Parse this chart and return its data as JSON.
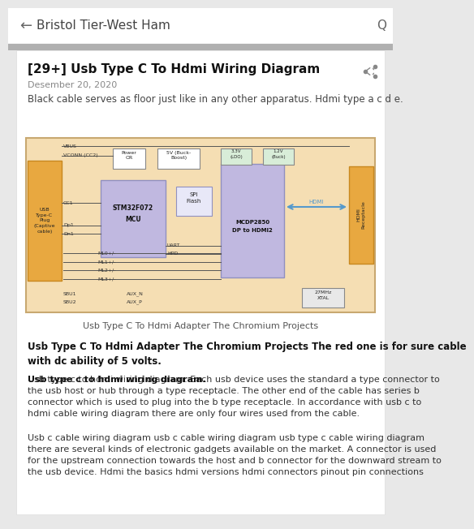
{
  "title": "Bristol Tier-West Ham",
  "article_title": "[29+] Usb Type C To Hdmi Wiring Diagram",
  "date": "Desember 20, 2020",
  "intro_text": "Black cable serves as floor just like in any other apparatus. Hdmi type a c d e.",
  "caption": "Usb Type C To Hdmi Adapter The Chromium Projects",
  "bold_heading_bold": "Usb Type C To Hdmi Adapter The Chromium Projects",
  "bold_heading_normal": " The red one is for sure cable\nwith dc ability of 5 volts.",
  "para1_bold": "Usb type c to hdmi wiring diagram.",
  "para1_rest": " Each usb device uses the standard a type connector to\nthe usb host or hub through a type receptacle. The other end of the cable has series b\nconnector which is used to plug into the b type receptacle. In accordance with usb c to\nhdmi cable wiring diagram there are only four wires used from the cable.",
  "paragraph2": "Usb c cable wiring diagram usb c cable wiring diagram usb type c cable wiring diagram\nthere are several kinds of electronic gadgets available on the market. A connector is used\nfor the upstream connection towards the host and b connector for the downward stream to\nthe usb device. Hdmi the basics hdmi versions hdmi connectors pinout pin connections",
  "bg_color": "#e8e8e8",
  "card_bg": "#ffffff",
  "header_bg": "#ffffff",
  "diagram_bg": "#f5deb3",
  "diagram_border": "#c8a870",
  "mcu_color": "#c0b8e0",
  "hdmi_chip_color": "#c0b8e0",
  "usb_plug_color": "#e8a840",
  "hdmi_rec_color": "#e8a840",
  "wire_color": "#555555",
  "arrow_color": "#5599cc",
  "text_dark": "#222222",
  "text_gray": "#666666",
  "text_light": "#888888"
}
